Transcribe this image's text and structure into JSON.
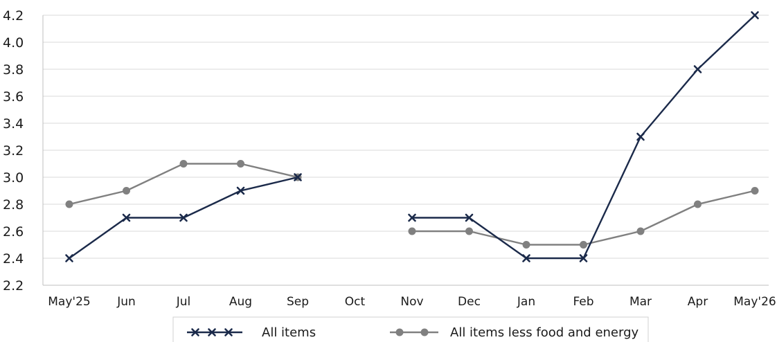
{
  "chart_data": {
    "type": "line",
    "categories": [
      "May'25",
      "Jun",
      "Jul",
      "Aug",
      "Sep",
      "Oct",
      "Nov",
      "Dec",
      "Jan",
      "Feb",
      "Mar",
      "Apr",
      "May'26"
    ],
    "ylim": [
      2.2,
      4.2
    ],
    "yticks": [
      "2.2",
      "2.4",
      "2.6",
      "2.8",
      "3.0",
      "3.2",
      "3.4",
      "3.6",
      "3.8",
      "4.0",
      "4.2"
    ],
    "grid": true,
    "legend_position": "bottom",
    "series": [
      {
        "name": "All items",
        "color": "#1b2a4a",
        "marker": "x",
        "values": [
          2.4,
          2.7,
          2.7,
          2.9,
          3.0,
          null,
          2.7,
          2.7,
          2.4,
          2.4,
          3.3,
          3.8,
          4.2
        ]
      },
      {
        "name": "All items less food and energy",
        "color": "#808080",
        "marker": "circle",
        "values": [
          2.8,
          2.9,
          3.1,
          3.1,
          3.0,
          null,
          2.6,
          2.6,
          2.5,
          2.5,
          2.6,
          2.8,
          2.9
        ]
      }
    ]
  }
}
